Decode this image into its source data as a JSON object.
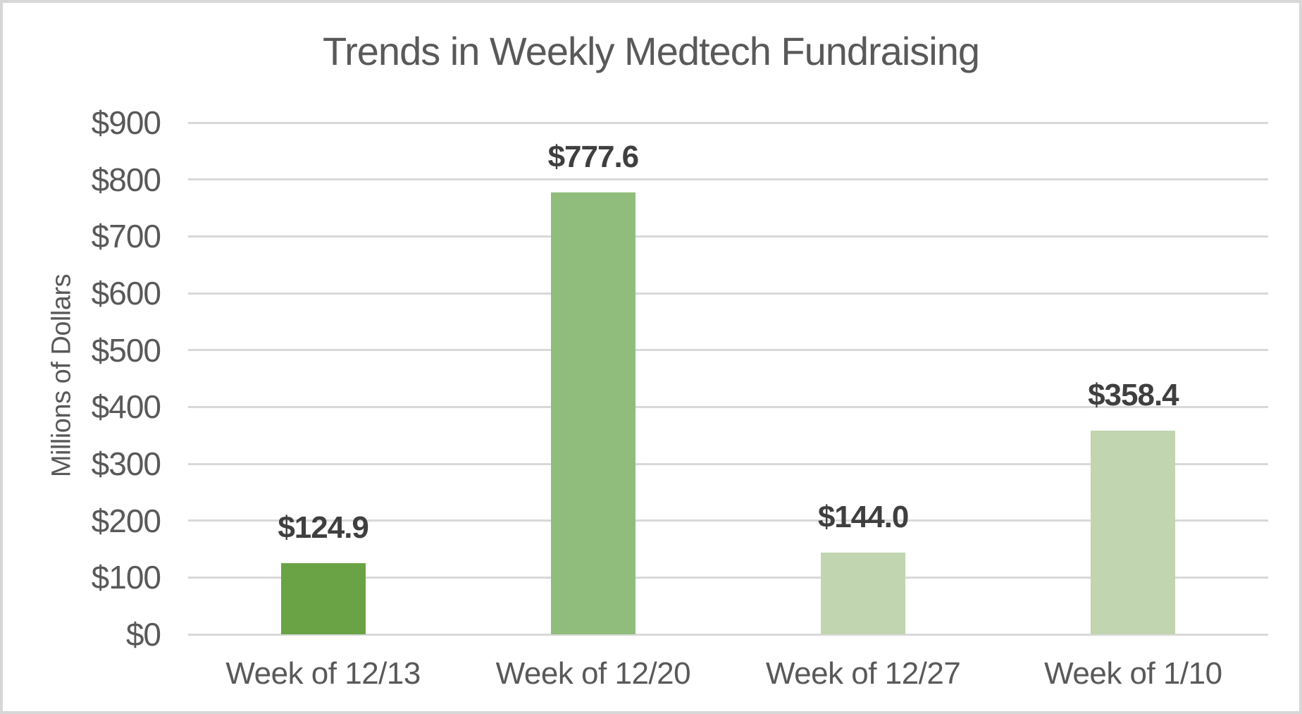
{
  "window": {
    "background": "#ffffff",
    "border_color": "#d7d7d7"
  },
  "chart_data": {
    "type": "bar",
    "title": "Trends in Weekly Medtech Fundraising",
    "xlabel": "",
    "ylabel": "Millions of Dollars",
    "categories": [
      "Week of 12/13",
      "Week of 12/20",
      "Week of 12/27",
      "Week of 1/10"
    ],
    "values": [
      124.9,
      777.6,
      144.0,
      358.4
    ],
    "data_labels": [
      "$124.9",
      "$777.6",
      "$144.0",
      "$358.4"
    ],
    "bar_colors": [
      "#69a346",
      "#90bd7b",
      "#c1d5b0",
      "#c1d5b0"
    ],
    "ylim": [
      0,
      900
    ],
    "ytick_step": 100,
    "ytick_labels": [
      "$0",
      "$100",
      "$200",
      "$300",
      "$400",
      "$500",
      "$600",
      "$700",
      "$800",
      "$900"
    ],
    "grid": true,
    "gridline_color": "#d9d9d9",
    "legend": "none",
    "title_color": "#595959",
    "axis_text_color": "#595959",
    "data_label_color": "#3f3f3f"
  }
}
